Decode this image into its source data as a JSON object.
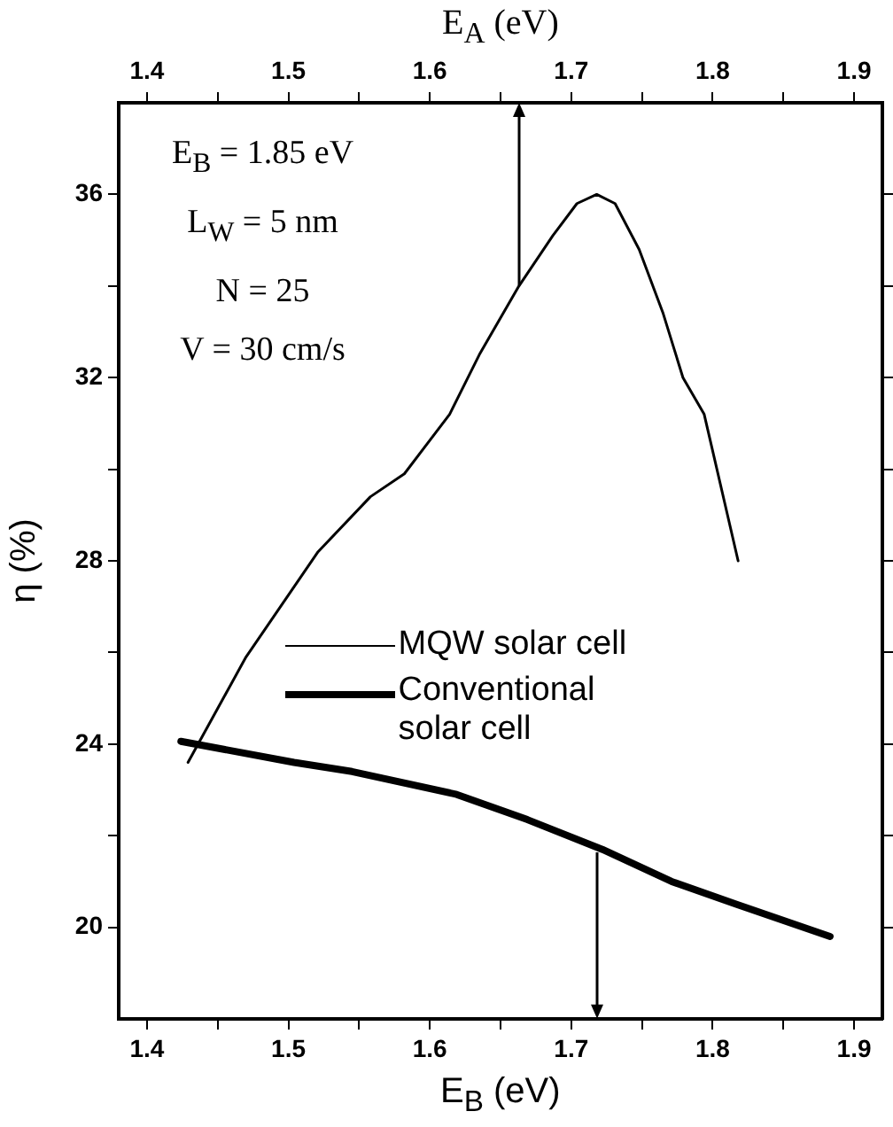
{
  "chart_data": {
    "type": "line",
    "xlabel": "E$_{B}$ (eV)",
    "x2label": "E$_{A}$ (eV)",
    "ylabel": "η (%)",
    "annotations": [
      "E$_{B}$ = 1.85 eV",
      "L$_{W}$ = 5 nm",
      "N = 25",
      "V = 30 cm/s"
    ],
    "xlim": [
      1.38,
      1.92
    ],
    "xticks": [
      1.4,
      {
        "value": 1.45,
        "label": null
      },
      1.5,
      {
        "value": 1.55,
        "label": null
      },
      1.6,
      {
        "value": 1.65,
        "label": null
      },
      1.7,
      {
        "value": 1.75,
        "label": null
      },
      1.8,
      {
        "value": 1.85,
        "label": null
      },
      1.9
    ],
    "x2lim": [
      1.38,
      1.92
    ],
    "x2ticks": [
      1.4,
      {
        "value": 1.45,
        "label": null
      },
      1.5,
      {
        "value": 1.55,
        "label": null
      },
      1.6,
      {
        "value": 1.65,
        "label": null
      },
      1.7,
      {
        "value": 1.75,
        "label": null
      },
      1.8,
      {
        "value": 1.85,
        "label": null
      },
      1.9
    ],
    "ylim": [
      18,
      38
    ],
    "yticks": [
      20,
      {
        "value": 22,
        "label": null
      },
      24,
      {
        "value": 26,
        "label": null
      },
      28,
      {
        "value": 30,
        "label": null
      },
      32,
      {
        "value": 34,
        "label": null
      },
      36
    ],
    "series": [
      {
        "name": "MQW solar cell",
        "color": "#000000",
        "x": [
          1.429,
          1.47,
          1.521,
          1.558,
          1.582,
          1.614,
          1.635,
          1.663,
          1.687,
          1.704,
          1.718,
          1.731,
          1.748,
          1.765,
          1.779,
          1.794,
          1.818
        ],
        "values": [
          23.6,
          25.9,
          28.2,
          29.4,
          29.9,
          31.2,
          32.5,
          34.0,
          35.1,
          35.8,
          36.0,
          35.8,
          34.8,
          33.4,
          32.0,
          31.2,
          28.0
        ]
      },
      {
        "name": "Conventional solar cell",
        "color": "#000000",
        "x": [
          1.424,
          1.504,
          1.545,
          1.619,
          1.669,
          1.722,
          1.771,
          1.817,
          1.883
        ],
        "values": [
          24.06,
          23.6,
          23.4,
          22.9,
          22.35,
          21.7,
          21.0,
          20.5,
          19.8
        ]
      }
    ],
    "grid": false,
    "legend": "bottom",
    "marker": "none",
    "line_style": "solid"
  }
}
